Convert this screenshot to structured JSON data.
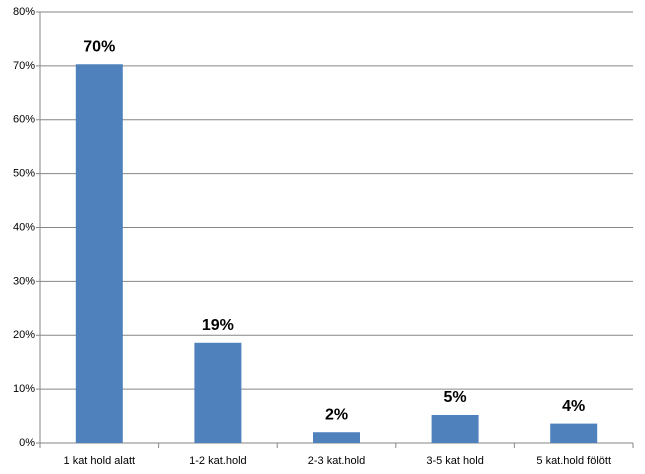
{
  "chart_data": {
    "type": "bar",
    "categories": [
      "1 kat hold alatt",
      "1-2 kat.hold",
      "2-3 kat.hold",
      "3-5 kat hold",
      "5 kat.hold fölött"
    ],
    "values": [
      70.3,
      18.6,
      2.0,
      5.2,
      3.6
    ],
    "value_labels": [
      "70%",
      "19%",
      "2%",
      "5%",
      "4%"
    ],
    "color": "#4f81bd",
    "ylim": [
      0,
      80
    ],
    "yticks": [
      {
        "value": 0,
        "label": "0%"
      },
      {
        "value": 10,
        "label": "10%"
      },
      {
        "value": 20,
        "label": "20%"
      },
      {
        "value": 30,
        "label": "30%"
      },
      {
        "value": 40,
        "label": "40%"
      },
      {
        "value": 50,
        "label": "50%"
      },
      {
        "value": 60,
        "label": "60%"
      },
      {
        "value": 70,
        "label": "70%"
      },
      {
        "value": 80,
        "label": "80%"
      }
    ],
    "grid": true
  }
}
